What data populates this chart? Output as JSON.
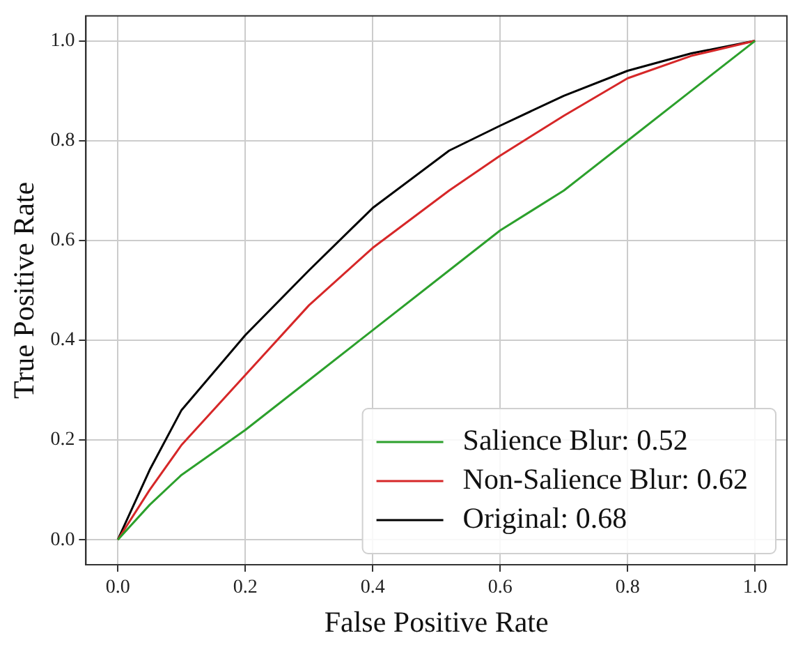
{
  "chart_data": {
    "type": "line",
    "xlabel": "False Positive Rate",
    "ylabel": "True Positive Rate",
    "xlim": [
      -0.05,
      1.05
    ],
    "ylim": [
      -0.05,
      1.05
    ],
    "xticks": [
      {
        "value": 0,
        "label": "0.0"
      },
      {
        "value": 0.2,
        "label": "0.2"
      },
      {
        "value": 0.4,
        "label": "0.4"
      },
      {
        "value": 0.6,
        "label": "0.6"
      },
      {
        "value": 0.8,
        "label": "0.8"
      },
      {
        "value": 1,
        "label": "1.0"
      }
    ],
    "yticks": [
      {
        "value": 0,
        "label": "0.0"
      },
      {
        "value": 0.2,
        "label": "0.2"
      },
      {
        "value": 0.4,
        "label": "0.4"
      },
      {
        "value": 0.6,
        "label": "0.6"
      },
      {
        "value": 0.8,
        "label": "0.8"
      },
      {
        "value": 1,
        "label": "1.0"
      }
    ],
    "grid": true,
    "legend": "bottom right",
    "marker": "none",
    "line_style": "solid",
    "x": [
      0,
      0.05,
      0.1,
      0.2,
      0.3,
      0.4,
      0.52,
      0.6,
      0.7,
      0.8,
      0.9,
      1
    ],
    "series": [
      {
        "name": "Salience Blur: 0.52",
        "color": "#2ca02c",
        "values": [
          0,
          0.07,
          0.13,
          0.22,
          0.32,
          0.42,
          0.54,
          0.62,
          0.7,
          0.8,
          0.9,
          1
        ]
      },
      {
        "name": "Non-Salience Blur: 0.62",
        "color": "#d62728",
        "values": [
          0,
          0.1,
          0.19,
          0.33,
          0.47,
          0.585,
          0.7,
          0.77,
          0.85,
          0.925,
          0.97,
          1
        ]
      },
      {
        "name": "Original: 0.68",
        "color": "#000000",
        "values": [
          0,
          0.14,
          0.26,
          0.41,
          0.54,
          0.665,
          0.78,
          0.83,
          0.89,
          0.94,
          0.975,
          1
        ]
      }
    ]
  }
}
